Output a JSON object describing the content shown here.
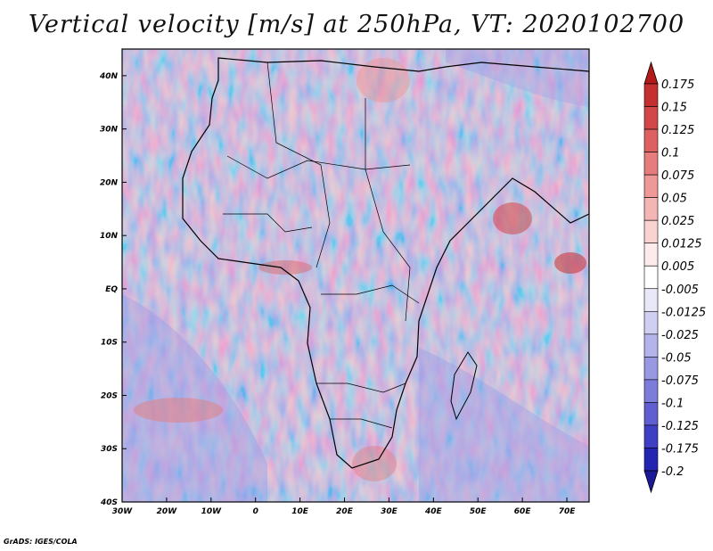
{
  "title": "Vertical velocity [m/s] at 250hPa, VT: 2020102700",
  "credit": "GrADS: IGES/COLA",
  "map": {
    "lon_range": [
      -30,
      75
    ],
    "lat_range": [
      -40,
      45
    ],
    "lon_ticks": [
      "30W",
      "20W",
      "10W",
      "0",
      "10E",
      "20E",
      "30E",
      "40E",
      "50E",
      "60E",
      "70E"
    ],
    "lat_ticks": [
      "40S",
      "30S",
      "20S",
      "10S",
      "EQ",
      "10N",
      "20N",
      "30N",
      "40N"
    ],
    "field": "vertical velocity",
    "background_color": "#d9d9f0"
  },
  "colorbar": {
    "orientation": "vertical",
    "labels": [
      "0.175",
      "0.15",
      "0.125",
      "0.1",
      "0.075",
      "0.05",
      "0.025",
      "0.0125",
      "0.005",
      "-0.005",
      "-0.0125",
      "-0.025",
      "-0.05",
      "-0.075",
      "-0.1",
      "-0.125",
      "-0.175",
      "-0.2"
    ],
    "colors": [
      "#b51a1a",
      "#c42f2f",
      "#d24747",
      "#dd6161",
      "#e67c7c",
      "#ee9898",
      "#f4b5b5",
      "#f9d2d2",
      "#fdeaea",
      "#ffffff",
      "#e8e8f8",
      "#cfcff2",
      "#b4b4eb",
      "#9898e3",
      "#7c7cdb",
      "#5f5fd2",
      "#3f3fc5",
      "#2424b3",
      "#1a1a99"
    ]
  }
}
